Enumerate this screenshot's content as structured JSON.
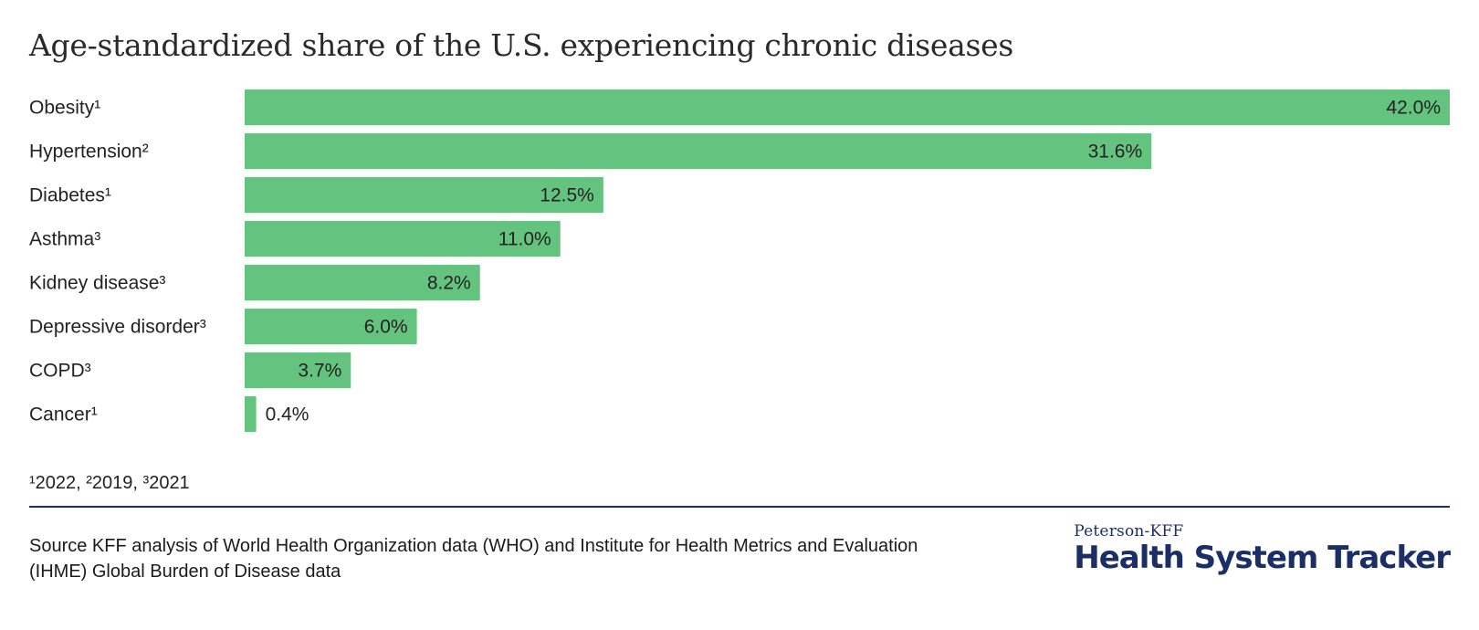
{
  "title": "Age-standardized share of the U.S. experiencing chronic diseases",
  "chart_data": {
    "type": "bar",
    "orientation": "horizontal",
    "title": "Age-standardized share of the U.S. experiencing chronic diseases",
    "categories": [
      "Obesity¹",
      "Hypertension²",
      "Diabetes¹",
      "Asthma³",
      "Kidney disease³",
      "Depressive disorder³",
      "COPD³",
      "Cancer¹"
    ],
    "values": [
      42.0,
      31.6,
      12.5,
      11.0,
      8.2,
      6.0,
      3.7,
      0.4
    ],
    "value_labels": [
      "42.0%",
      "31.6%",
      "12.5%",
      "11.0%",
      "8.2%",
      "6.0%",
      "3.7%",
      "0.4%"
    ],
    "xlim": [
      0,
      42.0
    ],
    "unit": "%",
    "grid": false,
    "bar_color": "#64c47f"
  },
  "footnote": "¹2022, ²2019, ³2021",
  "source": "Source KFF analysis of World Health Organization data (WHO) and Institute for Health Metrics and Evaluation (IHME) Global Burden of Disease data",
  "logo": {
    "small": "Peterson-KFF",
    "big": "Health System Tracker",
    "color": "#1b2f66"
  }
}
